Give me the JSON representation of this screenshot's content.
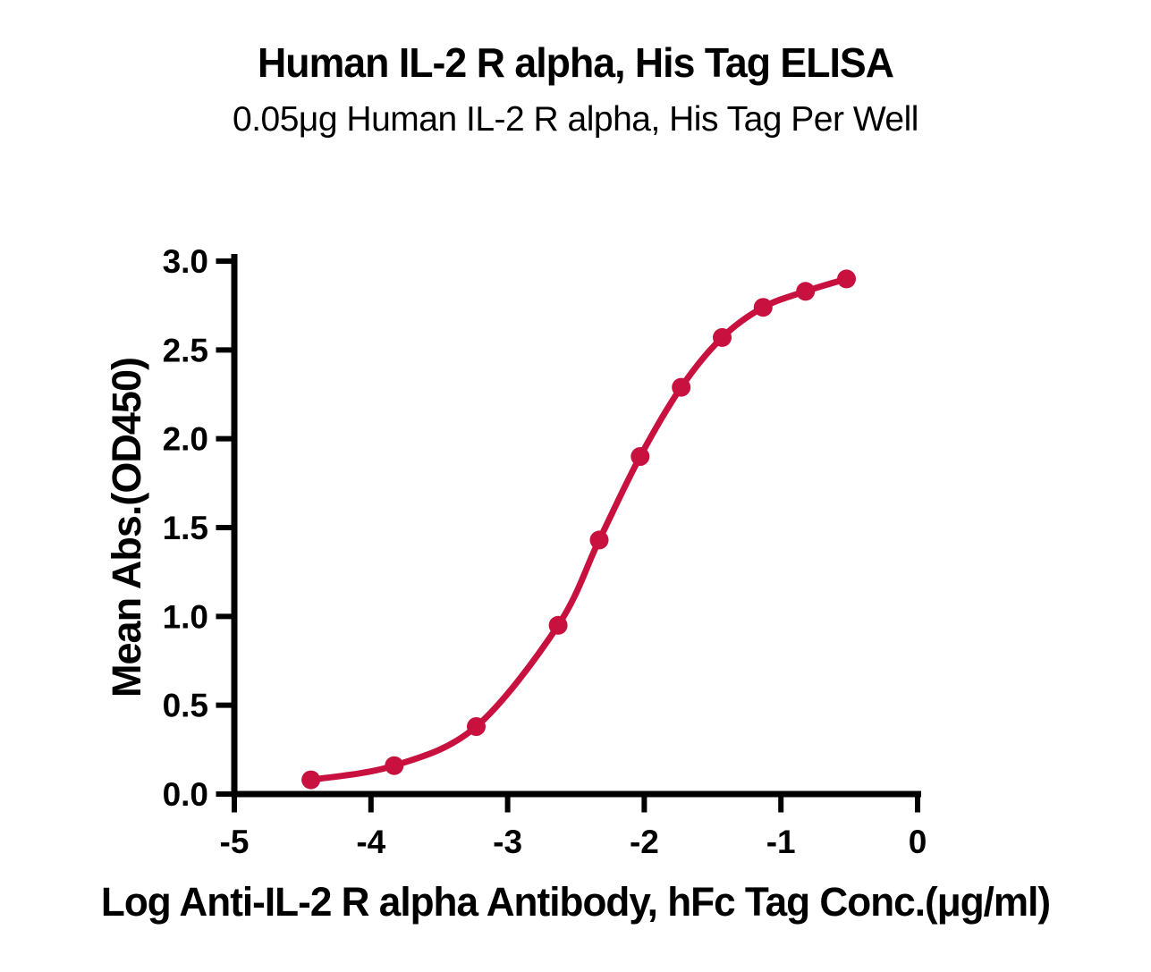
{
  "chart_data": {
    "type": "line",
    "title": "Human IL-2 R alpha, His Tag ELISA",
    "subtitle": "0.05μg Human IL-2 R alpha, His Tag Per Well",
    "xlabel": "Log Anti-IL-2 R alpha Antibody, hFc Tag Conc.(μg/ml)",
    "ylabel": "Mean Abs.(OD450)",
    "x": [
      -4.44,
      -3.83,
      -3.23,
      -2.63,
      -2.33,
      -2.03,
      -1.73,
      -1.43,
      -1.13,
      -0.82,
      -0.52
    ],
    "y": [
      0.08,
      0.16,
      0.38,
      0.95,
      1.43,
      1.9,
      2.29,
      2.57,
      2.74,
      2.83,
      2.9
    ],
    "xlim": [
      -5,
      0
    ],
    "ylim": [
      0,
      3
    ],
    "xticks": [
      -5,
      -4,
      -3,
      -2,
      -1,
      0
    ],
    "xtick_labels": [
      "-5",
      "-4",
      "-3",
      "-2",
      "-1",
      "0"
    ],
    "yticks": [
      0,
      0.5,
      1,
      1.5,
      2,
      2.5,
      3
    ],
    "ytick_labels": [
      "0.0",
      "0.5",
      "1.0",
      "1.5",
      "2.0",
      "2.5",
      "3.0"
    ],
    "curve_type": "sigmoid-4PL-fit",
    "marker": "circle",
    "grid": false,
    "legend": "none"
  },
  "colors": {
    "curve": "#C8113F",
    "axis": "#000000",
    "text": "#000000",
    "background": "#FFFFFF"
  }
}
